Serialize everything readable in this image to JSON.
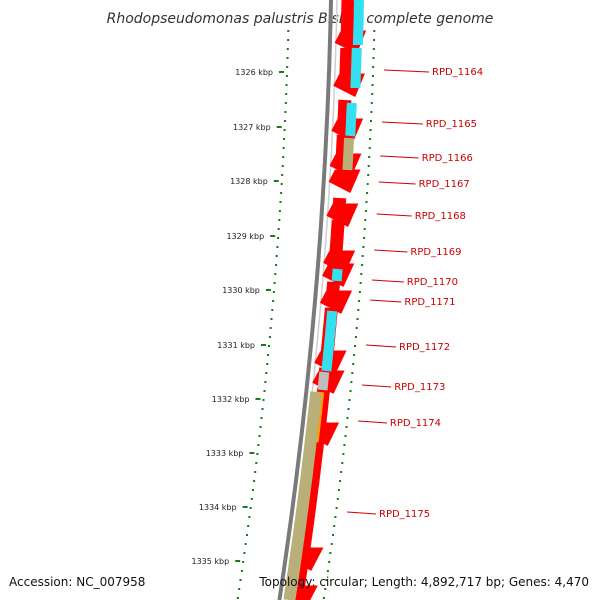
{
  "title": "Rhodopseudomonas palustris BisB5, complete genome",
  "footer": {
    "accession": "Accession: NC_007958",
    "topology": "Topology: circular; Length: 4,892,717 bp; Genes: 4,470"
  },
  "colors": {
    "backbone": "#7a7a7a",
    "ticks": "#1a7a1a",
    "forward_gene": "#ff0000",
    "cds_cyan": "#33e0ef",
    "cds_olive": "#b9b079",
    "cds_orange": "#ff9a00",
    "cds_gray": "#bdbdbd",
    "label": "#cc0000"
  },
  "kbp_labels": [
    "1326 kbp",
    "1327 kbp",
    "1328 kbp",
    "1329 kbp",
    "1330 kbp",
    "1331 kbp",
    "1332 kbp",
    "1333 kbp",
    "1334 kbp",
    "1335 kbp"
  ],
  "genes": [
    "RPD_1164",
    "RPD_1165",
    "RPD_1166",
    "RPD_1167",
    "RPD_1168",
    "RPD_1169",
    "RPD_1170",
    "RPD_1171",
    "RPD_1172",
    "RPD_1173",
    "RPD_1174",
    "RPD_1175"
  ]
}
